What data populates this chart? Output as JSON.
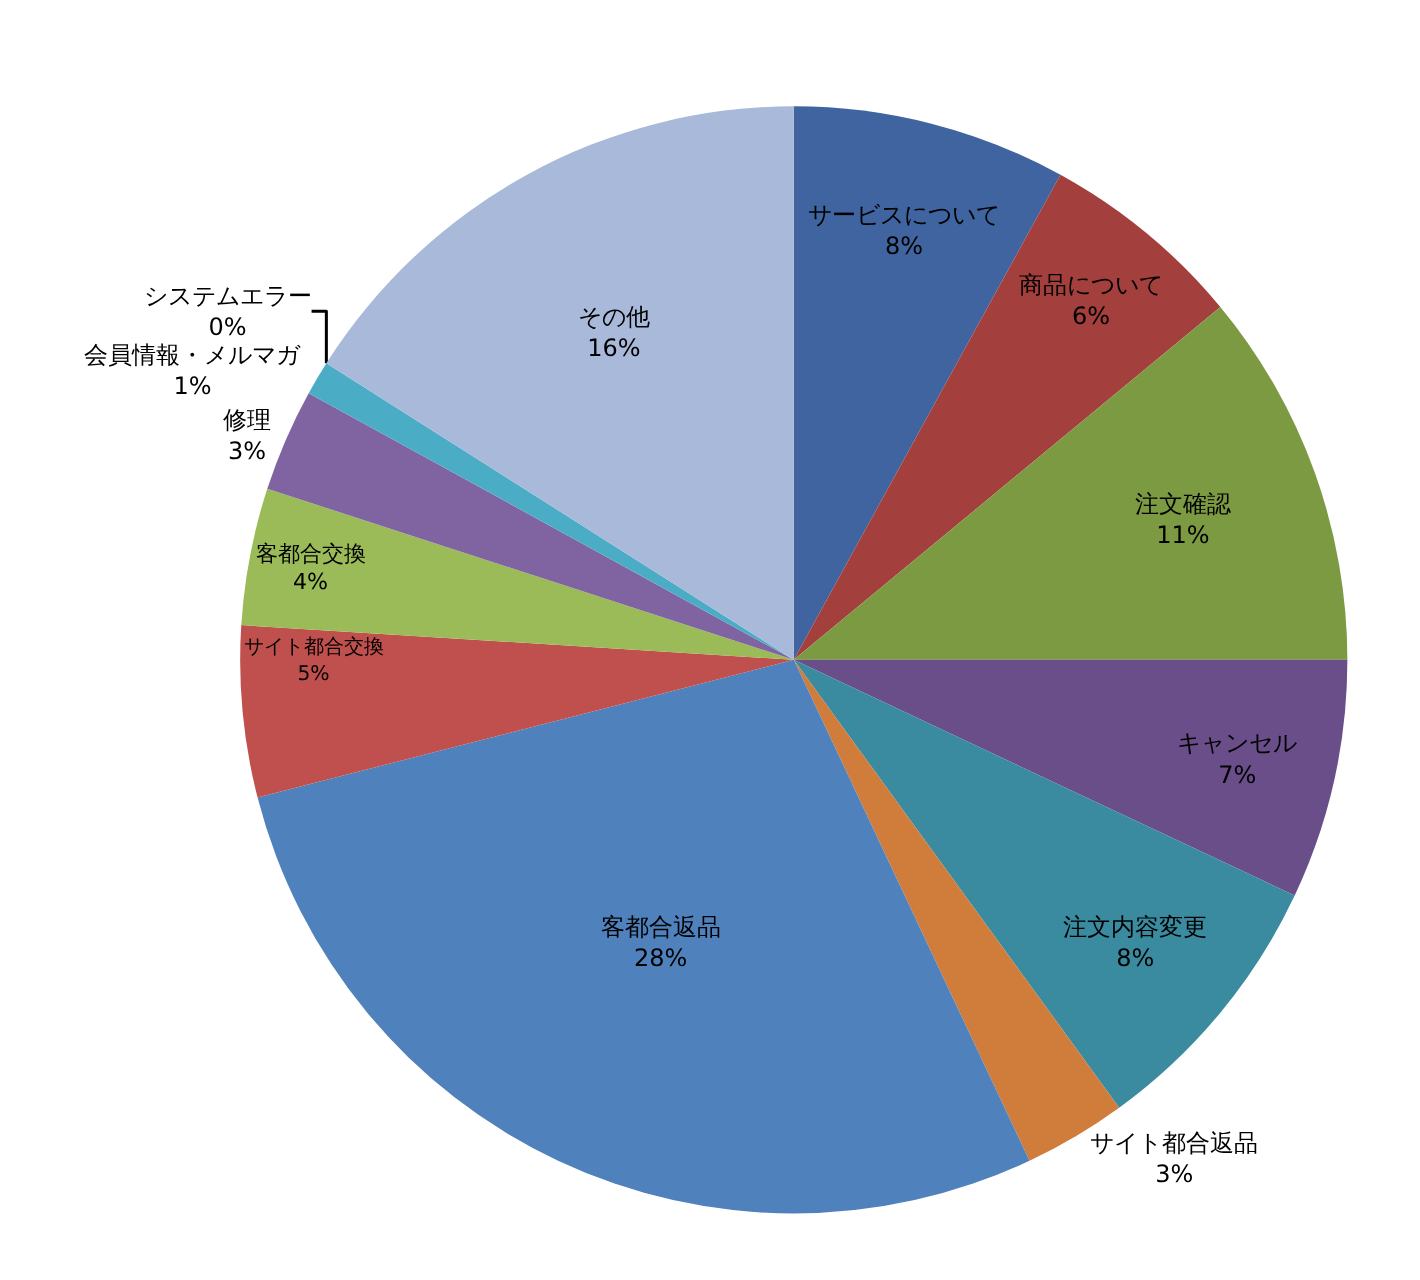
{
  "chart_data": {
    "type": "pie",
    "categories": [
      "サービスについて",
      "商品について",
      "注文確認",
      "キャンセル",
      "注文内容変更",
      "サイト都合返品",
      "客都合返品",
      "サイト都合交換",
      "客都合交換",
      "修理",
      "会員情報・メルマガ",
      "システムエラー",
      "その他"
    ],
    "values": [
      8,
      6,
      11,
      7,
      8,
      3,
      28,
      5,
      4,
      3,
      1,
      0,
      16
    ],
    "value_labels": [
      "8%",
      "6%",
      "11%",
      "7%",
      "8%",
      "3%",
      "28%",
      "5%",
      "4%",
      "3%",
      "1%",
      "0%",
      "16%"
    ],
    "colors": [
      "#3f64a0",
      "#a33f3c",
      "#7c9a42",
      "#6a4e8a",
      "#3a8ba0",
      "#d07c3a",
      "#4f81bd",
      "#c0504d",
      "#9bbb59",
      "#8064a2",
      "#4bacc6",
      "#f79646",
      "#a9b9d9"
    ],
    "legend": false
  }
}
